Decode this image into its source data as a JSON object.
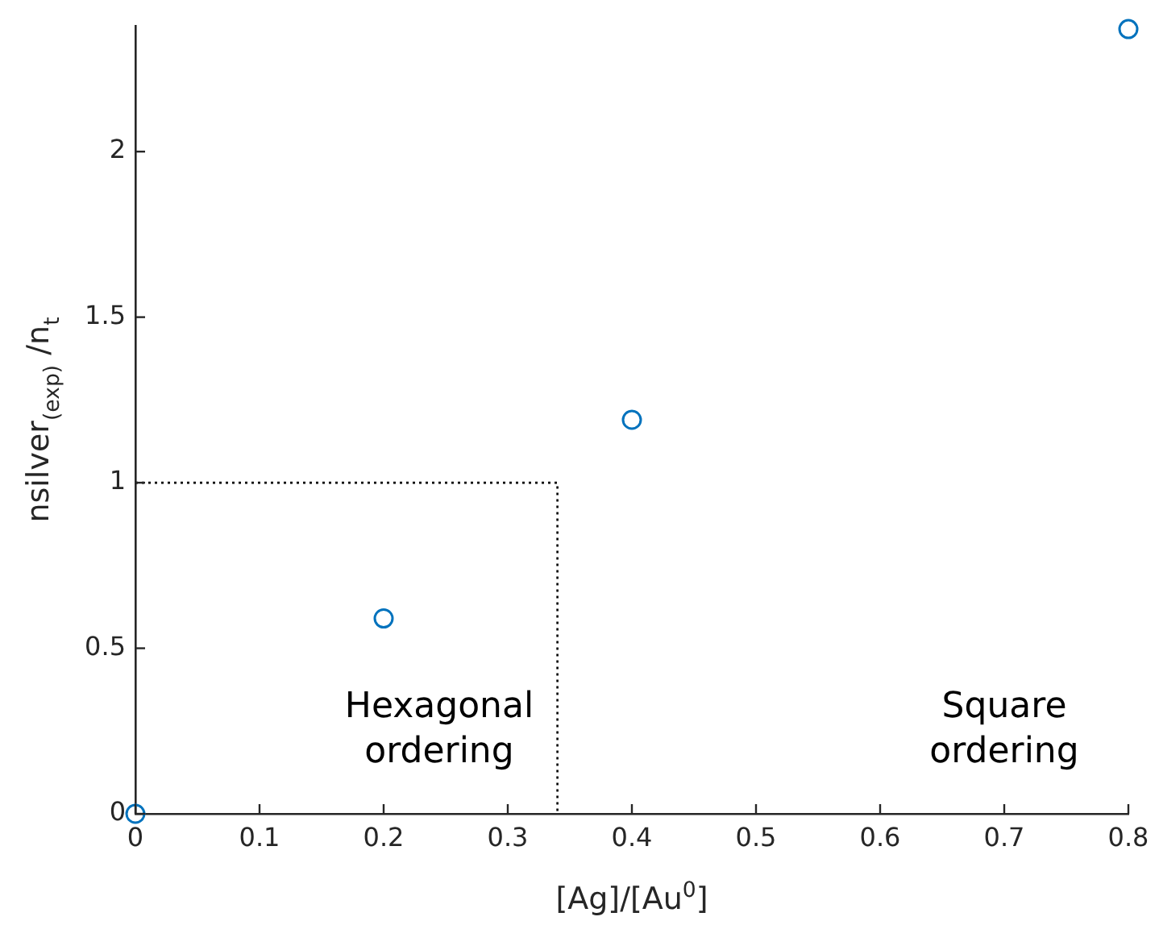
{
  "chart_data": {
    "type": "scatter",
    "xlabel": "[Ag]/[Au$^{0}$]",
    "ylabel": "nsilver$_{(exp)}$ /n$_{t}$",
    "series": [
      {
        "color": "#0072bd",
        "marker": "circle",
        "x": [
          0,
          0.2,
          0.4,
          0.8
        ],
        "values": [
          0,
          0.59,
          1.19,
          2.37
        ]
      },
      {
        "type": "line",
        "color": "#000000",
        "marker": "none",
        "line_style": "dotted",
        "x": [
          0,
          0.34,
          0.34
        ],
        "values": [
          1,
          1,
          0
        ]
      }
    ],
    "xlim": [
      0,
      0.8
    ],
    "xticks": [
      0,
      0.1,
      0.2,
      0.3,
      0.4,
      0.5,
      0.6,
      0.7,
      0.8
    ],
    "ylim": [
      0,
      2.38
    ],
    "yticks": [
      0,
      0.5,
      1,
      1.5,
      2
    ],
    "grid": false,
    "legend": false,
    "annotations": [
      "Hexagonal ordering",
      "Square ordering"
    ]
  }
}
